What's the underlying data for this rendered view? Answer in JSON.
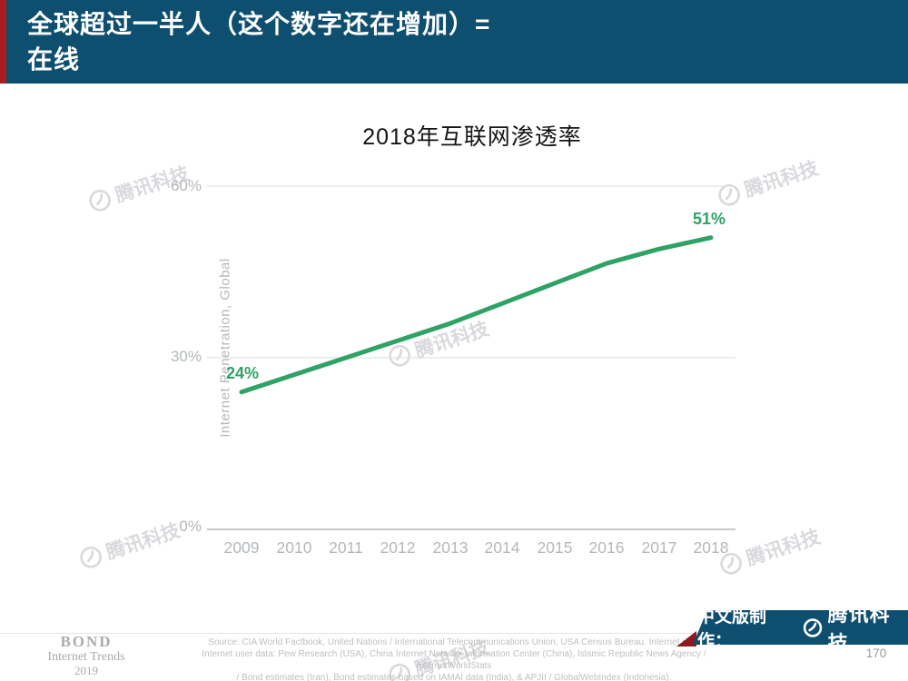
{
  "header": {
    "title_line1": "全球超过一半人（这个数字还在增加）=",
    "title_line2": "在线"
  },
  "chart": {
    "title": "2018年互联网渗透率"
  },
  "chart_data": {
    "type": "line",
    "title": "2018年互联网渗透率",
    "xlabel": "",
    "ylabel": "Internet Penetration, Global",
    "x": [
      2009,
      2010,
      2011,
      2012,
      2013,
      2014,
      2015,
      2016,
      2017,
      2018
    ],
    "values": [
      24,
      27,
      30,
      33,
      36,
      39.5,
      43,
      46.5,
      49,
      51
    ],
    "ylim": [
      0,
      60
    ],
    "yticks": [
      60,
      30,
      0
    ],
    "ytick_labels": [
      "60%",
      "30%",
      "0%"
    ],
    "value_labels": {
      "first": "24%",
      "last": "51%"
    },
    "line_color": "#2FA266",
    "grid": true,
    "legend": "none"
  },
  "watermark": {
    "text": "腾讯科技",
    "logo": "tencent-tech-circle-logo"
  },
  "footer": {
    "brand_line1": "BOND",
    "brand_line2": "Internet Trends",
    "brand_line3": "2019",
    "source_line1": "Source: CIA World Factbook, United Nations / International Telecommunications Union, USA Census Bureau. Internet user",
    "source_line2": "Internet user data: Pew Research (USA), China Internet Network Information Center (China), Islamic Republic News Agency / InternetWorldStats",
    "source_line3": "/ Bond estimates (Iran), Bond estimates based on IAMAI data (India), & APJII / GlobalWebIndex (Indonesia).",
    "credit_label": "中文版制作：",
    "credit_brand": "腾讯科技",
    "page_number": "170"
  },
  "colors": {
    "header_bg": "#0E4F70",
    "accent_red": "#A81E22",
    "line_green": "#2FA266",
    "grid_gray": "#E2E3E5",
    "axis_gray": "#C7C9CB",
    "tick_text": "#B4B8BB"
  }
}
